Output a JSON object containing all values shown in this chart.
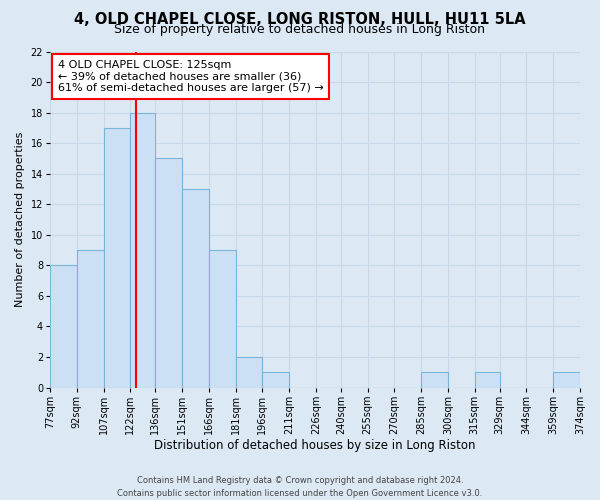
{
  "title": "4, OLD CHAPEL CLOSE, LONG RISTON, HULL, HU11 5LA",
  "subtitle": "Size of property relative to detached houses in Long Riston",
  "xlabel": "Distribution of detached houses by size in Long Riston",
  "ylabel": "Number of detached properties",
  "bin_edges": [
    77,
    92,
    107,
    122,
    136,
    151,
    166,
    181,
    196,
    211,
    226,
    240,
    255,
    270,
    285,
    300,
    315,
    329,
    344,
    359,
    374
  ],
  "counts": [
    8,
    9,
    17,
    18,
    15,
    13,
    9,
    2,
    1,
    0,
    0,
    0,
    0,
    0,
    1,
    0,
    1,
    0,
    0,
    1
  ],
  "bar_facecolor": "#cce0f5",
  "bar_edgecolor": "#7ab4d8",
  "bar_linewidth": 0.8,
  "vline_x": 125,
  "vline_color": "red",
  "vline_linewidth": 1.5,
  "ylim": [
    0,
    22
  ],
  "yticks": [
    0,
    2,
    4,
    6,
    8,
    10,
    12,
    14,
    16,
    18,
    20,
    22
  ],
  "tick_labels": [
    "77sqm",
    "92sqm",
    "107sqm",
    "122sqm",
    "136sqm",
    "151sqm",
    "166sqm",
    "181sqm",
    "196sqm",
    "211sqm",
    "226sqm",
    "240sqm",
    "255sqm",
    "270sqm",
    "285sqm",
    "300sqm",
    "315sqm",
    "329sqm",
    "344sqm",
    "359sqm",
    "374sqm"
  ],
  "annotation_title": "4 OLD CHAPEL CLOSE: 125sqm",
  "annotation_line1": "← 39% of detached houses are smaller (36)",
  "annotation_line2": "61% of semi-detached houses are larger (57) →",
  "annotation_box_color": "white",
  "annotation_box_edgecolor": "red",
  "background_color": "#dce9f5",
  "footer1": "Contains HM Land Registry data © Crown copyright and database right 2024.",
  "footer2": "Contains public sector information licensed under the Open Government Licence v3.0.",
  "title_fontsize": 10.5,
  "subtitle_fontsize": 9,
  "xlabel_fontsize": 8.5,
  "ylabel_fontsize": 8,
  "tick_fontsize": 7,
  "footer_fontsize": 6,
  "annotation_fontsize": 8,
  "grid_color": "#c8d8e8",
  "grid_linewidth": 0.8
}
